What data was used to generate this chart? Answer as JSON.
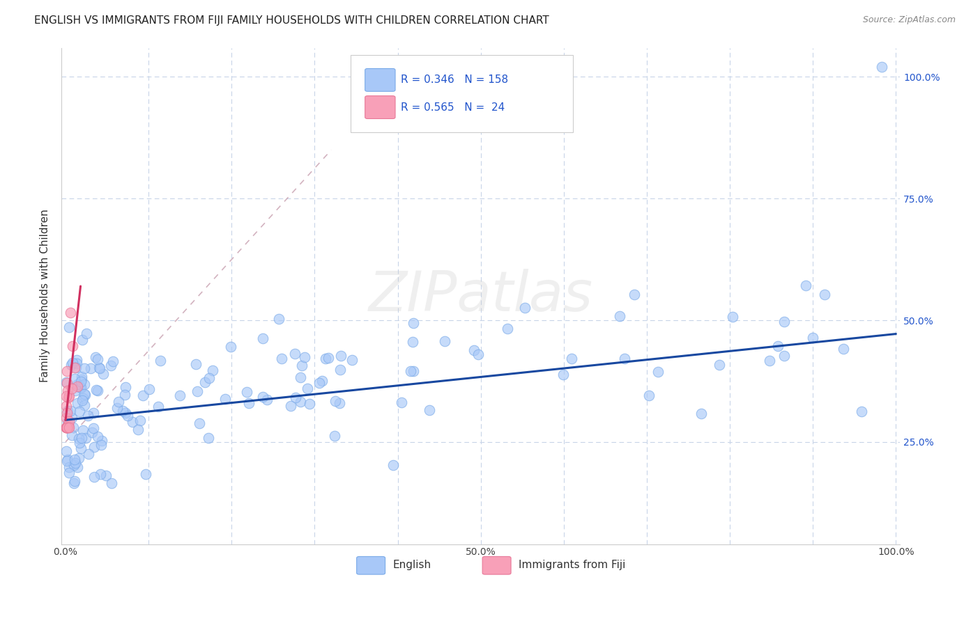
{
  "title": "ENGLISH VS IMMIGRANTS FROM FIJI FAMILY HOUSEHOLDS WITH CHILDREN CORRELATION CHART",
  "source": "Source: ZipAtlas.com",
  "ylabel": "Family Households with Children",
  "watermark": "ZIPatlas",
  "english_color": "#a8c8f8",
  "english_edge_color": "#7aaae8",
  "fiji_color": "#f8a0b8",
  "fiji_edge_color": "#e87898",
  "english_line_color": "#1848a0",
  "fiji_line_color": "#d03060",
  "diag_color": "#c8a0b0",
  "english_R": 0.346,
  "english_N": 158,
  "fiji_R": 0.565,
  "fiji_N": 24,
  "legend_color": "#2255cc",
  "right_tick_color": "#2255cc",
  "background_color": "#ffffff",
  "grid_color": "#c8d4e8",
  "title_fontsize": 11,
  "axis_label_fontsize": 11,
  "tick_fontsize": 10,
  "source_fontsize": 9
}
